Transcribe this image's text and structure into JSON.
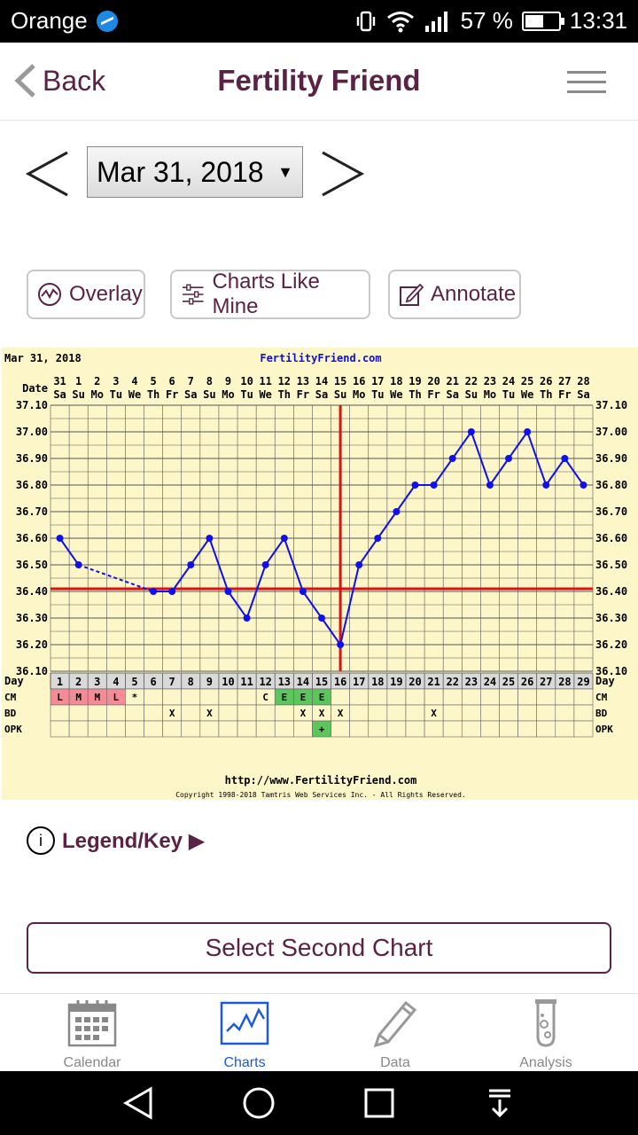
{
  "status": {
    "carrier": "Orange",
    "battery_pct": "57 %",
    "battery_level": 0.57,
    "time": "13:31"
  },
  "header": {
    "back_label": "Back",
    "title": "Fertility Friend"
  },
  "date_selector": {
    "value": "Mar 31, 2018"
  },
  "tools": {
    "overlay": "Overlay",
    "charts_like_mine": "Charts Like Mine",
    "annotate": "Annotate"
  },
  "chart_data": {
    "type": "line",
    "date_title": "Mar 31, 2018",
    "site": "FertilityFriend.com",
    "footer_url": "http://www.FertilityFriend.com",
    "copyright": "Copyright 1998-2018 Tamtris Web Services Inc. - All Rights Reserved.",
    "date_label": "Date",
    "day_label": "Day",
    "dates": [
      "31",
      "1",
      "2",
      "3",
      "4",
      "5",
      "6",
      "7",
      "8",
      "9",
      "10",
      "11",
      "12",
      "13",
      "14",
      "15",
      "16",
      "17",
      "18",
      "19",
      "20",
      "21",
      "22",
      "23",
      "24",
      "25",
      "26",
      "27",
      "28"
    ],
    "weekdays": [
      "Sa",
      "Su",
      "Mo",
      "Tu",
      "We",
      "Th",
      "Fr",
      "Sa",
      "Su",
      "Mo",
      "Tu",
      "We",
      "Th",
      "Fr",
      "Sa",
      "Su",
      "Mo",
      "Tu",
      "We",
      "Th",
      "Fr",
      "Sa",
      "Su",
      "Mo",
      "Tu",
      "We",
      "Th",
      "Fr",
      "Sa"
    ],
    "days": [
      "1",
      "2",
      "3",
      "4",
      "5",
      "6",
      "7",
      "8",
      "9",
      "10",
      "11",
      "12",
      "13",
      "14",
      "15",
      "16",
      "17",
      "18",
      "19",
      "20",
      "21",
      "22",
      "23",
      "24",
      "25",
      "26",
      "27",
      "28",
      "29"
    ],
    "y_ticks": [
      "37.10",
      "37.00",
      "36.90",
      "36.80",
      "36.70",
      "36.60",
      "36.50",
      "36.40",
      "36.30",
      "36.20",
      "36.10"
    ],
    "ylim": [
      36.1,
      37.1
    ],
    "temps": [
      36.6,
      36.5,
      null,
      null,
      null,
      36.4,
      36.4,
      36.5,
      36.6,
      36.4,
      36.3,
      36.5,
      36.6,
      36.4,
      36.3,
      36.2,
      36.5,
      36.6,
      36.7,
      36.8,
      36.8,
      36.9,
      37.0,
      36.8,
      36.9,
      37.0,
      36.8,
      36.9,
      36.8
    ],
    "coverline": 36.41,
    "ovulation_day": 16,
    "rows": {
      "cm": {
        "label": "CM",
        "cells": [
          "L",
          "M",
          "M",
          "L",
          "*",
          "",
          "",
          "",
          "",
          "",
          "",
          "C",
          "E",
          "E",
          "E",
          "",
          "",
          "",
          "",
          "",
          "",
          "",
          "",
          "",
          "",
          "",
          "",
          "",
          ""
        ]
      },
      "bd": {
        "label": "BD",
        "cells": [
          "",
          "",
          "",
          "",
          "",
          "",
          "X",
          "",
          "X",
          "",
          "",
          "",
          "",
          "X",
          "X",
          "X",
          "",
          "",
          "",
          "",
          "X",
          "",
          "",
          "",
          "",
          "",
          "",
          "",
          ""
        ]
      },
      "opk": {
        "label": "OPK",
        "cells": [
          "",
          "",
          "",
          "",
          "",
          "",
          "",
          "",
          "",
          "",
          "",
          "",
          "",
          "",
          "+",
          "",
          "",
          "",
          "",
          "",
          "",
          "",
          "",
          "",
          "",
          "",
          "",
          "",
          ""
        ]
      }
    },
    "colors": {
      "line": "#1010ee",
      "coverline": "#dd1111",
      "menses": "#f58b95",
      "egg_white": "#5cc65c",
      "opk_pos": "#5cc65c",
      "grid": "#555555"
    }
  },
  "legend": {
    "label": "Legend/Key ▶",
    "icon_text": "i"
  },
  "second_chart": {
    "label": "Select Second Chart"
  },
  "tabs": [
    {
      "label": "Calendar"
    },
    {
      "label": "Charts"
    },
    {
      "label": "Data"
    },
    {
      "label": "Analysis"
    }
  ]
}
